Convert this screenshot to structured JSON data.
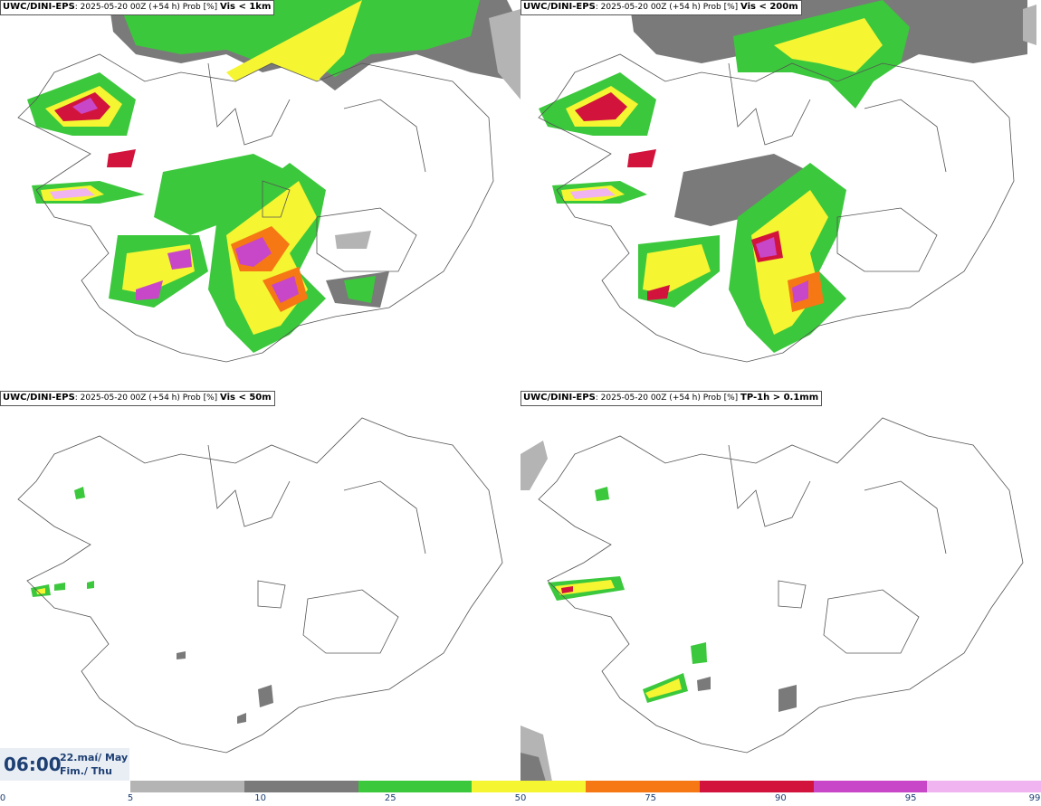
{
  "panels": [
    {
      "source": "UWC/DINI-EPS",
      "run": ": 2025-05-20 00Z (+54 h) Prob [%]",
      "variable": "Vis < 1km"
    },
    {
      "source": "UWC/DINI-EPS",
      "run": ": 2025-05-20 00Z (+54 h) Prob [%]",
      "variable": "Vis < 200m"
    },
    {
      "source": "UWC/DINI-EPS",
      "run": ": 2025-05-20 00Z (+54 h) Prob [%]",
      "variable": "Vis < 50m"
    },
    {
      "source": "UWC/DINI-EPS",
      "run": ": 2025-05-20 00Z (+54 h) Prob [%]",
      "variable": "TP-1h > 0.1mm"
    }
  ],
  "valid_time": {
    "time": "06:00",
    "date_line": "22.maí/ May",
    "day_line": "Fim./ Thu"
  },
  "legend": {
    "ticks": [
      "0",
      "5",
      "10",
      "25",
      "50",
      "75",
      "90",
      "95",
      "99"
    ],
    "colors": [
      "#b4b4b4",
      "#7a7a7a",
      "#3cc83c",
      "#f5f532",
      "#f57814",
      "#d2143c",
      "#c846c8",
      "#f0b4f0"
    ]
  }
}
